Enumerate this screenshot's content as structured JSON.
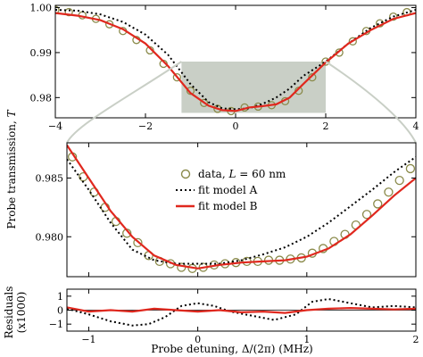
{
  "chart_data": [
    {
      "type": "line",
      "panel": "top",
      "xlim": [
        -4,
        4
      ],
      "ylim": [
        0.9755,
        1.0005
      ],
      "xticks": [
        -4,
        -2,
        0,
        2,
        4
      ],
      "xtick_labels": [
        "-4",
        "-2",
        "0",
        "2",
        "4"
      ],
      "yticks": [
        0.98,
        0.99,
        1.0
      ],
      "ytick_labels": [
        "0.98",
        "0.99",
        "1.00"
      ],
      "highlight_region": {
        "x": [
          -1.2,
          2.0
        ],
        "y": [
          0.9766,
          0.988
        ],
        "color": "#c9cfc6"
      },
      "series": [
        {
          "name": "data, L = 60 nm",
          "style": "markers",
          "x": [
            -4.0,
            -3.7,
            -3.4,
            -3.1,
            -2.8,
            -2.5,
            -2.2,
            -1.9,
            -1.6,
            -1.3,
            -1.0,
            -0.7,
            -0.4,
            -0.1,
            0.2,
            0.5,
            0.8,
            1.1,
            1.4,
            1.7,
            2.0,
            2.3,
            2.6,
            2.9,
            3.2,
            3.5,
            3.8
          ],
          "y": [
            0.9995,
            0.999,
            0.9983,
            0.9975,
            0.9963,
            0.9948,
            0.9928,
            0.9905,
            0.9875,
            0.9845,
            0.9815,
            0.9788,
            0.9775,
            0.977,
            0.9778,
            0.978,
            0.9783,
            0.9792,
            0.9815,
            0.9845,
            0.988,
            0.99,
            0.9925,
            0.9948,
            0.9965,
            0.998,
            0.999
          ]
        },
        {
          "name": "fit model A",
          "style": "dotted",
          "x": [
            -4.0,
            -3.5,
            -3.0,
            -2.5,
            -2.0,
            -1.5,
            -1.0,
            -0.6,
            -0.3,
            0.0,
            0.3,
            0.6,
            0.9,
            1.2,
            1.5,
            2.0,
            2.5,
            3.0,
            3.5,
            4.0
          ],
          "y": [
            0.9995,
            0.9993,
            0.9985,
            0.9968,
            0.994,
            0.9895,
            0.983,
            0.979,
            0.9776,
            0.9774,
            0.9776,
            0.9786,
            0.98,
            0.982,
            0.9848,
            0.988,
            0.992,
            0.9955,
            0.998,
            0.9995
          ]
        },
        {
          "name": "fit model B",
          "style": "solid",
          "x": [
            -4.0,
            -3.5,
            -3.0,
            -2.5,
            -2.0,
            -1.5,
            -1.0,
            -0.6,
            -0.3,
            0.0,
            0.3,
            0.6,
            0.9,
            1.2,
            1.5,
            2.0,
            2.5,
            3.0,
            3.5,
            4.0
          ],
          "y": [
            0.9988,
            0.9982,
            0.9972,
            0.9952,
            0.992,
            0.987,
            0.981,
            0.9782,
            0.9772,
            0.977,
            0.9778,
            0.9781,
            0.9785,
            0.98,
            0.983,
            0.9878,
            0.992,
            0.995,
            0.9975,
            0.9988
          ]
        }
      ]
    },
    {
      "type": "line",
      "panel": "middle",
      "xlim": [
        -1.2,
        2.0
      ],
      "ylim": [
        0.9766,
        0.988
      ],
      "xticks": [
        -1,
        0,
        1,
        2
      ],
      "yticks": [
        0.98,
        0.985
      ],
      "ytick_labels": [
        "0.980",
        "0.985"
      ],
      "ylabel": "Probe transmission, T",
      "legend": "center",
      "series": [
        {
          "name": "data, L = 60 nm",
          "style": "markers",
          "x": [
            -1.15,
            -1.05,
            -0.95,
            -0.85,
            -0.75,
            -0.65,
            -0.55,
            -0.45,
            -0.35,
            -0.25,
            -0.15,
            -0.05,
            0.05,
            0.15,
            0.25,
            0.35,
            0.45,
            0.55,
            0.65,
            0.75,
            0.85,
            0.95,
            1.05,
            1.15,
            1.25,
            1.35,
            1.45,
            1.55,
            1.65,
            1.75,
            1.85,
            1.95
          ],
          "y": [
            0.9868,
            0.9851,
            0.9838,
            0.9825,
            0.9813,
            0.9803,
            0.9795,
            0.9784,
            0.9779,
            0.9777,
            0.9774,
            0.9773,
            0.9774,
            0.9776,
            0.9777,
            0.9778,
            0.9779,
            0.9779,
            0.978,
            0.978,
            0.9781,
            0.9782,
            0.9786,
            0.979,
            0.9796,
            0.9802,
            0.981,
            0.9819,
            0.9828,
            0.9838,
            0.9848,
            0.9858
          ]
        },
        {
          "name": "fit model A",
          "style": "dotted",
          "x": [
            -1.2,
            -1.0,
            -0.8,
            -0.6,
            -0.4,
            -0.2,
            0.0,
            0.2,
            0.4,
            0.6,
            0.8,
            1.0,
            1.2,
            1.4,
            1.6,
            1.8,
            2.0
          ],
          "y": [
            0.9866,
            0.984,
            0.9812,
            0.9789,
            0.978,
            0.9777,
            0.9777,
            0.9777,
            0.978,
            0.9785,
            0.9791,
            0.98,
            0.9812,
            0.9826,
            0.984,
            0.9855,
            0.9868
          ]
        },
        {
          "name": "fit model B",
          "style": "solid",
          "x": [
            -1.2,
            -1.0,
            -0.8,
            -0.6,
            -0.4,
            -0.2,
            0.0,
            0.2,
            0.4,
            0.6,
            0.8,
            1.0,
            1.2,
            1.4,
            1.6,
            1.8,
            2.0
          ],
          "y": [
            0.9878,
            0.985,
            0.9822,
            0.98,
            0.9784,
            0.9776,
            0.9773,
            0.9776,
            0.9778,
            0.9779,
            0.978,
            0.9783,
            0.979,
            0.9802,
            0.9818,
            0.9835,
            0.985
          ]
        }
      ]
    },
    {
      "type": "line",
      "panel": "bottom",
      "xlim": [
        -1.2,
        2.0
      ],
      "ylim": [
        -1.5,
        1.5
      ],
      "xticks": [
        -1,
        0,
        1,
        2
      ],
      "xtick_labels": [
        "-1",
        "0",
        "1",
        "2"
      ],
      "yticks": [
        -1,
        0,
        1
      ],
      "ytick_labels": [
        "-1",
        "0",
        "1"
      ],
      "xlabel": "Probe detuning, Δ/(2π) (MHz)",
      "ylabel": "Residuals (x1000)",
      "series": [
        {
          "name": "fit model A",
          "style": "dotted",
          "x": [
            -1.2,
            -1.0,
            -0.8,
            -0.6,
            -0.45,
            -0.3,
            -0.15,
            0.0,
            0.15,
            0.3,
            0.5,
            0.7,
            0.9,
            1.05,
            1.2,
            1.4,
            1.6,
            1.8,
            2.0
          ],
          "y": [
            0.1,
            -0.3,
            -0.8,
            -1.1,
            -1.0,
            -0.5,
            0.3,
            0.5,
            0.3,
            -0.1,
            -0.4,
            -0.7,
            -0.3,
            0.6,
            0.8,
            0.5,
            0.2,
            0.3,
            0.2
          ]
        },
        {
          "name": "fit model B",
          "style": "solid",
          "x": [
            -1.2,
            -1.0,
            -0.8,
            -0.6,
            -0.4,
            -0.2,
            0.0,
            0.2,
            0.4,
            0.6,
            0.8,
            1.0,
            1.2,
            1.4,
            1.6,
            1.8,
            2.0
          ],
          "y": [
            0.2,
            -0.1,
            0.0,
            -0.1,
            0.1,
            0.0,
            -0.1,
            0.0,
            -0.15,
            -0.1,
            -0.2,
            0.0,
            0.1,
            0.15,
            0.1,
            0.05,
            0.1
          ]
        }
      ]
    }
  ],
  "legend": {
    "entries": [
      {
        "prefix": "data, ",
        "italic": "L",
        "suffix": " = 60 nm"
      },
      {
        "text": "fit model A"
      },
      {
        "text": "fit model B"
      }
    ]
  },
  "colors": {
    "data_marker": "#8a8a4a",
    "model_a": "#000000",
    "model_b": "#e0281e",
    "highlight": "#c9cfc6",
    "connector": "#c9cfc6"
  },
  "labels": {
    "ylabel_main_prefix": "Probe transmission, ",
    "ylabel_main_italic": "T",
    "ylabel_resid_line1": "Residuals",
    "ylabel_resid_line2": "(x1000)",
    "xlabel": "Probe detuning, Δ/(2π) (MHz)"
  }
}
